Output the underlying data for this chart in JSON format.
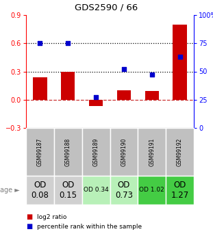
{
  "title": "GDS2590 / 66",
  "samples": [
    "GSM99187",
    "GSM99188",
    "GSM99189",
    "GSM99190",
    "GSM99191",
    "GSM99192"
  ],
  "log2_ratio": [
    0.24,
    0.3,
    -0.07,
    0.1,
    0.09,
    0.8
  ],
  "percentile_rank": [
    75,
    75,
    27,
    52,
    47,
    63
  ],
  "ylim_left": [
    -0.3,
    0.9
  ],
  "ylim_right": [
    0,
    100
  ],
  "yticks_left": [
    -0.3,
    0.0,
    0.3,
    0.6,
    0.9
  ],
  "yticks_right": [
    0,
    25,
    50,
    75,
    100
  ],
  "hlines": [
    0.3,
    0.6
  ],
  "bar_color": "#cc0000",
  "dot_color": "#0000cc",
  "zero_line_color": "#cc3333",
  "age_row": [
    "OD\n0.08",
    "OD\n0.15",
    "OD 0.34",
    "OD\n0.73",
    "OD 1.02",
    "OD\n1.27"
  ],
  "age_bg": [
    "#d0d0d0",
    "#d0d0d0",
    "#b8f0b8",
    "#b8f0b8",
    "#44cc44",
    "#44cc44"
  ],
  "age_fontsize": [
    8.5,
    8.5,
    6.5,
    8.5,
    6.5,
    8.5
  ],
  "gsm_bg": "#c0c0c0",
  "legend_red": "log2 ratio",
  "legend_blue": "percentile rank within the sample"
}
